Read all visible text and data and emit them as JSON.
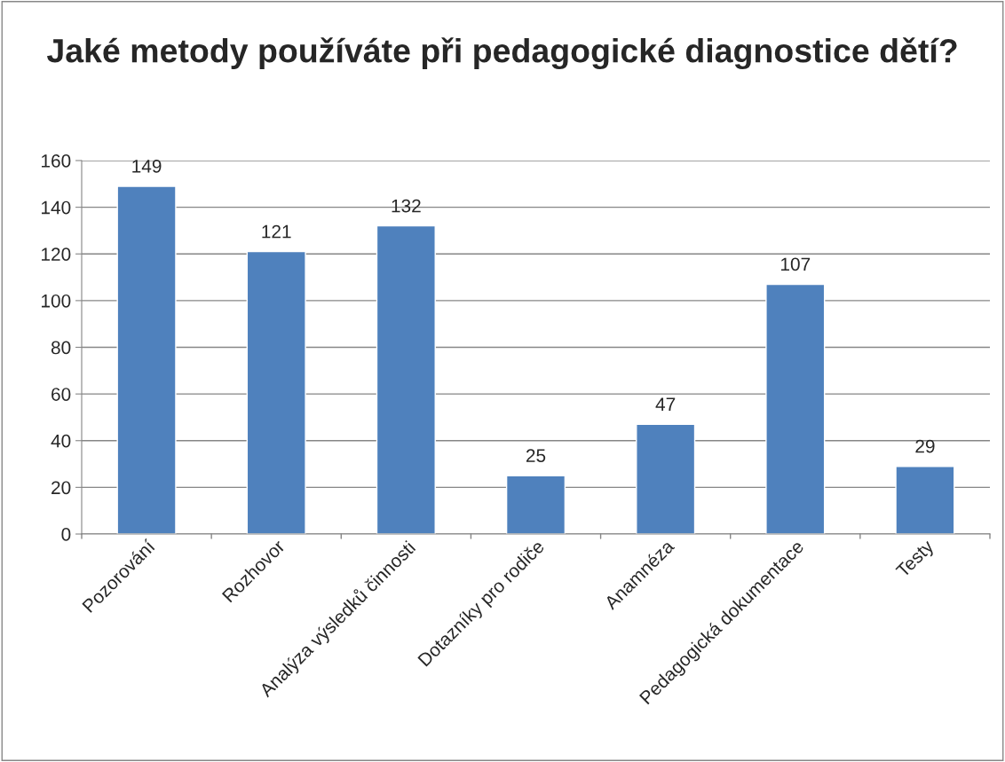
{
  "chart_data": {
    "type": "bar",
    "title": "Jaké metody používáte při pedagogické diagnostice dětí?",
    "categories": [
      "Pozorování",
      "Rozhovor",
      "Analýza výsledků činnosti",
      "Dotazníky pro rodiče",
      "Anamnéza",
      "Pedagogická dokumentace",
      "Testy"
    ],
    "values": [
      149,
      121,
      132,
      25,
      47,
      107,
      29
    ],
    "color": "#4f81bd",
    "ylim": [
      0,
      160
    ],
    "yticks": [
      0,
      20,
      40,
      60,
      80,
      100,
      120,
      140,
      160
    ],
    "grid": "y",
    "data_labels": true
  }
}
